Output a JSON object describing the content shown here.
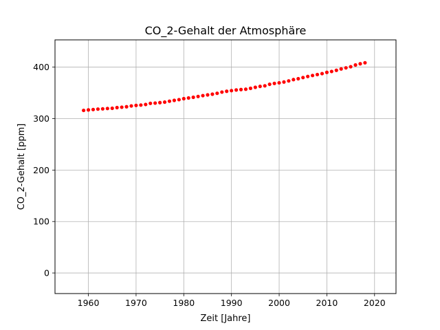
{
  "chart_data": {
    "type": "scatter",
    "title": "CO_2-Gehalt der Atmosphäre",
    "xlabel": "Zeit [Jahre]",
    "ylabel": "CO_2-Gehalt [ppm]",
    "xlim": [
      1953,
      2024.5
    ],
    "ylim": [
      -40,
      453
    ],
    "xticks": [
      1960,
      1970,
      1980,
      1990,
      2000,
      2010,
      2020
    ],
    "yticks": [
      0,
      100,
      200,
      300,
      400
    ],
    "grid": true,
    "marker_color": "#ff0000",
    "series": [
      {
        "x": [
          1959,
          1960,
          1961,
          1962,
          1963,
          1964,
          1965,
          1966,
          1967,
          1968,
          1969,
          1970,
          1971,
          1972,
          1973,
          1974,
          1975,
          1976,
          1977,
          1978,
          1979,
          1980,
          1981,
          1982,
          1983,
          1984,
          1985,
          1986,
          1987,
          1988,
          1989,
          1990,
          1991,
          1992,
          1993,
          1994,
          1995,
          1996,
          1997,
          1998,
          1999,
          2000,
          2001,
          2002,
          2003,
          2004,
          2005,
          2006,
          2007,
          2008,
          2009,
          2010,
          2011,
          2012,
          2013,
          2014,
          2015,
          2016,
          2017,
          2018
        ],
        "y": [
          315.97,
          316.91,
          317.64,
          318.45,
          318.99,
          319.62,
          320.04,
          321.37,
          322.18,
          323.05,
          324.62,
          325.68,
          326.32,
          327.45,
          329.68,
          330.18,
          331.11,
          332.04,
          333.83,
          335.4,
          336.84,
          338.75,
          340.11,
          341.45,
          343.05,
          344.65,
          346.12,
          347.42,
          349.19,
          351.57,
          353.12,
          354.39,
          355.61,
          356.45,
          357.1,
          358.83,
          360.82,
          362.61,
          363.73,
          366.7,
          368.38,
          369.55,
          371.14,
          373.28,
          375.8,
          377.52,
          379.8,
          381.9,
          383.79,
          385.6,
          387.43,
          389.9,
          391.65,
          393.85,
          396.52,
          398.65,
          400.83,
          404.24,
          406.55,
          408.52
        ]
      }
    ]
  }
}
